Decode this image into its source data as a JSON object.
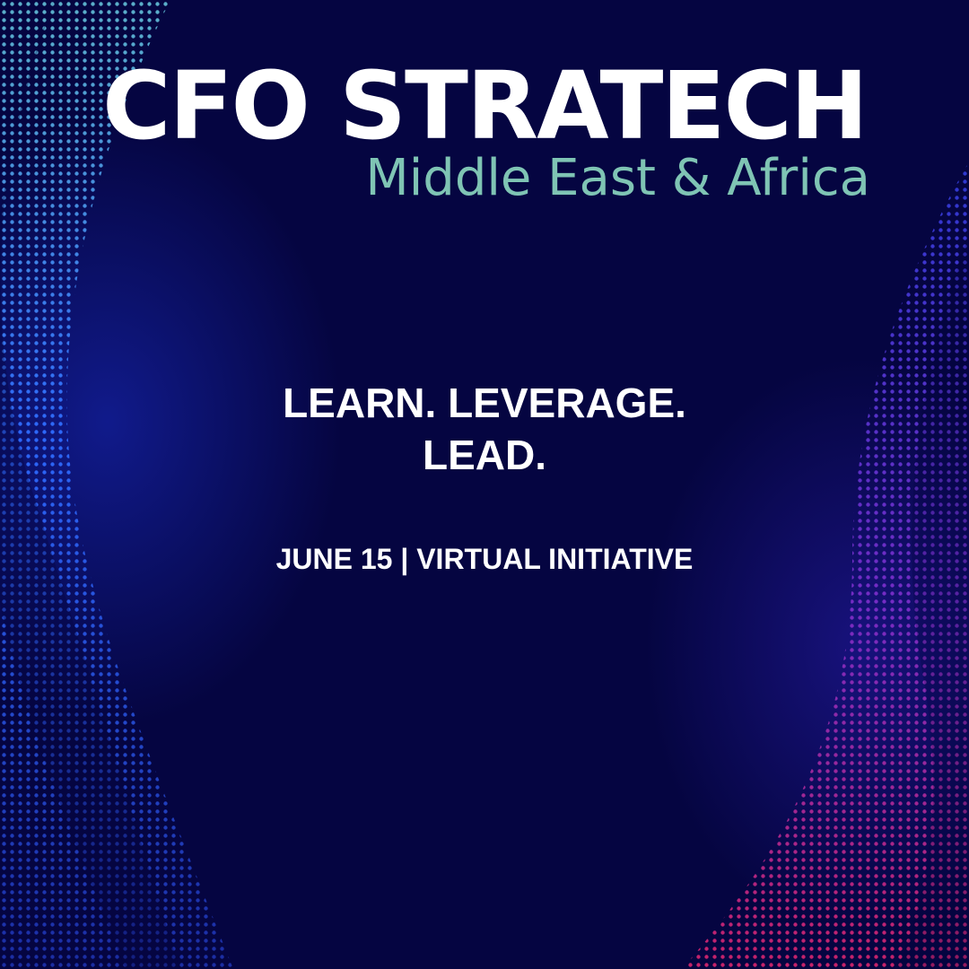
{
  "poster": {
    "title": "CFO STRATECH",
    "subtitle": "Middle East & Africa",
    "tagline_line1": "LEARN. LEVERAGE.",
    "tagline_line2": "LEAD.",
    "event_info": "JUNE 15 | VIRTUAL INITIATIVE"
  },
  "colors": {
    "background": "#050541",
    "title": "#ffffff",
    "subtitle": "#7fc4b4",
    "tagline": "#ffffff",
    "event_info": "#ffffff",
    "accent_blue": "#2f6bff",
    "accent_teal": "#5fb8d0",
    "accent_magenta": "#d0246b"
  },
  "decorations": {
    "left_wave": "dotted-halftone-wave-blue",
    "right_wave": "dotted-halftone-wave-magenta"
  }
}
